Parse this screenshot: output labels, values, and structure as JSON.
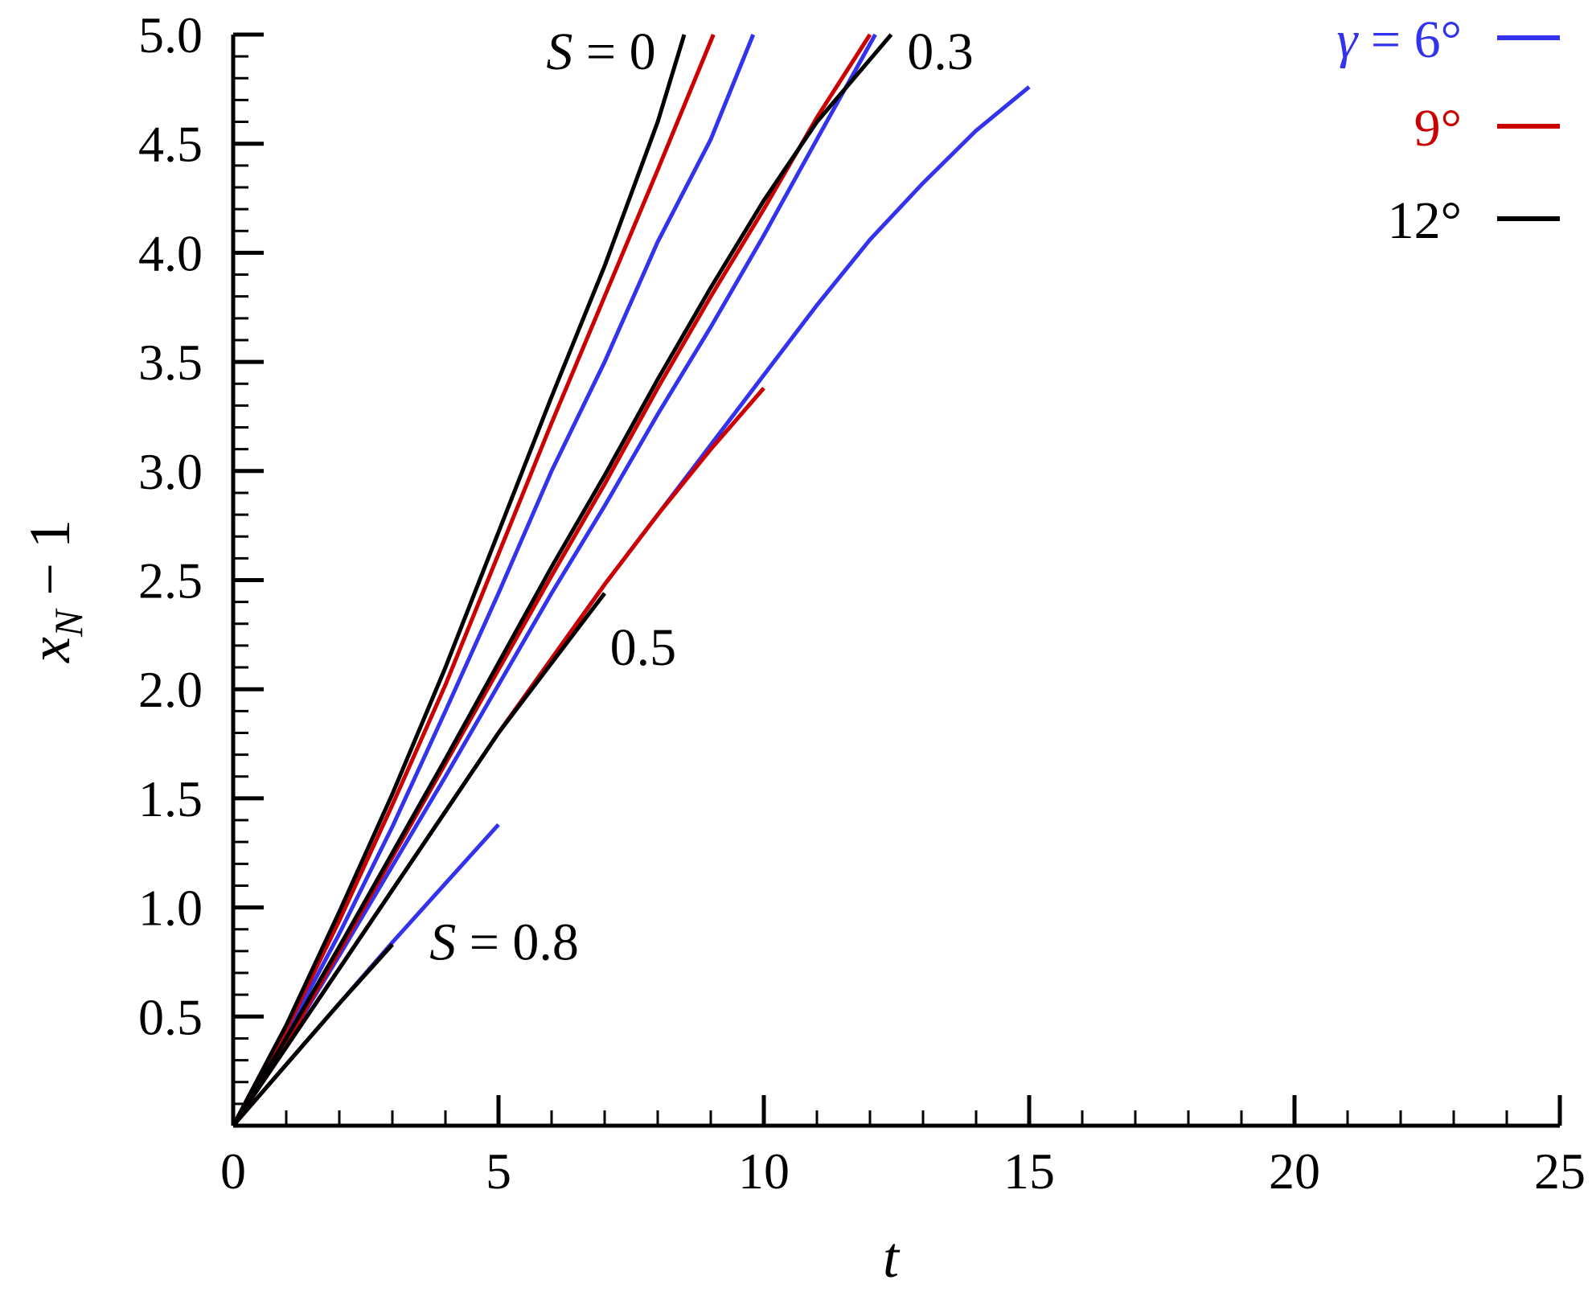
{
  "chart_data": {
    "type": "line",
    "xlabel": "t",
    "ylabel": {
      "base": "x",
      "sub": "N",
      "suffix": " − 1"
    },
    "xlim": [
      0,
      25
    ],
    "ylim": [
      0,
      5
    ],
    "x_ticks": [
      {
        "value": 0,
        "label": "0"
      },
      {
        "value": 5,
        "label": "5"
      },
      {
        "value": 10,
        "label": "10"
      },
      {
        "value": 15,
        "label": "15"
      },
      {
        "value": 20,
        "label": "20"
      },
      {
        "value": 25,
        "label": "25"
      }
    ],
    "y_ticks": [
      {
        "value": 0.5,
        "label": "0.5"
      },
      {
        "value": 1.0,
        "label": "1.0"
      },
      {
        "value": 1.5,
        "label": "1.5"
      },
      {
        "value": 2.0,
        "label": "2.0"
      },
      {
        "value": 2.5,
        "label": "2.5"
      },
      {
        "value": 3.0,
        "label": "3.0"
      },
      {
        "value": 3.5,
        "label": "3.5"
      },
      {
        "value": 4.0,
        "label": "4.0"
      },
      {
        "value": 4.5,
        "label": "4.5"
      },
      {
        "value": 5.0,
        "label": "5.0"
      }
    ],
    "grid": false,
    "legend_position": "top-right",
    "legend": [
      {
        "name": "γ = 6°",
        "color": "#3333ee"
      },
      {
        "name": "9°",
        "color": "#cc0000"
      },
      {
        "name": "12°",
        "color": "#000000"
      }
    ],
    "annotations": [
      {
        "text": "S = 0",
        "x": 5.9,
        "y": 4.93
      },
      {
        "text": "0.3",
        "x": 12.7,
        "y": 4.93
      },
      {
        "text": "0.5",
        "x": 7.1,
        "y": 2.2
      },
      {
        "text": "S = 0.8",
        "x": 3.7,
        "y": 0.85
      }
    ],
    "series": [
      {
        "name": "γ = 6°",
        "group": "S = 0",
        "color": "#3333ee",
        "x": [
          0,
          1,
          2,
          3,
          4,
          5,
          6,
          7,
          8,
          9,
          9.8
        ],
        "y": [
          0,
          0.42,
          0.88,
          1.37,
          1.9,
          2.44,
          3.0,
          3.5,
          4.05,
          4.52,
          5.0
        ]
      },
      {
        "name": "9°",
        "group": "S = 0",
        "color": "#cc0000",
        "x": [
          0,
          1,
          2,
          3,
          4,
          5,
          6,
          7,
          8,
          9.05
        ],
        "y": [
          0,
          0.44,
          0.94,
          1.47,
          2.02,
          2.62,
          3.22,
          3.8,
          4.38,
          5.0
        ]
      },
      {
        "name": "12°",
        "group": "S = 0",
        "color": "#000000",
        "x": [
          0,
          1,
          2,
          3,
          4,
          5,
          6,
          7,
          8,
          8.5
        ],
        "y": [
          0,
          0.46,
          0.98,
          1.52,
          2.1,
          2.72,
          3.34,
          3.94,
          4.6,
          5.0
        ]
      },
      {
        "name": "γ = 6°",
        "group": "S = 0.3",
        "color": "#3333ee",
        "x": [
          0,
          1,
          2,
          3,
          4,
          5,
          6,
          7,
          8,
          9,
          10,
          11,
          12.1
        ],
        "y": [
          0,
          0.38,
          0.78,
          1.19,
          1.6,
          2.02,
          2.44,
          2.84,
          3.26,
          3.66,
          4.08,
          4.52,
          5.0
        ]
      },
      {
        "name": "9°",
        "group": "S = 0.3",
        "color": "#cc0000",
        "x": [
          0,
          1,
          2,
          3,
          4,
          5,
          6,
          7,
          8,
          9,
          10,
          11,
          12.0
        ],
        "y": [
          0,
          0.38,
          0.8,
          1.23,
          1.66,
          2.09,
          2.52,
          2.94,
          3.38,
          3.8,
          4.2,
          4.62,
          5.0
        ]
      },
      {
        "name": "12°",
        "group": "S = 0.3",
        "color": "#000000",
        "x": [
          0,
          1,
          2,
          3,
          4,
          5,
          6,
          7,
          8,
          9,
          10,
          11,
          12.4
        ],
        "y": [
          0,
          0.4,
          0.82,
          1.25,
          1.68,
          2.12,
          2.56,
          2.98,
          3.42,
          3.84,
          4.24,
          4.6,
          5.0
        ]
      },
      {
        "name": "γ = 6°",
        "group": "S = 0.5",
        "color": "#3333ee",
        "x": [
          0,
          1,
          2,
          3,
          4,
          5,
          6,
          7,
          8,
          9,
          10,
          11,
          12,
          13,
          14,
          15
        ],
        "y": [
          0,
          0.36,
          0.72,
          1.08,
          1.44,
          1.8,
          2.14,
          2.48,
          2.8,
          3.12,
          3.44,
          3.76,
          4.06,
          4.32,
          4.56,
          4.76
        ]
      },
      {
        "name": "9°",
        "group": "S = 0.5",
        "color": "#cc0000",
        "x": [
          0,
          1,
          2,
          3,
          4,
          5,
          6,
          7,
          8,
          9,
          10
        ],
        "y": [
          0,
          0.36,
          0.72,
          1.08,
          1.44,
          1.8,
          2.14,
          2.48,
          2.8,
          3.1,
          3.38
        ]
      },
      {
        "name": "12°",
        "group": "S = 0.5",
        "color": "#000000",
        "x": [
          0,
          1,
          2,
          3,
          4,
          5,
          6,
          7
        ],
        "y": [
          0,
          0.36,
          0.72,
          1.08,
          1.44,
          1.8,
          2.12,
          2.44
        ]
      },
      {
        "name": "γ = 6°",
        "group": "S = 0.8",
        "color": "#3333ee",
        "x": [
          0,
          1,
          2,
          3,
          4,
          5
        ],
        "y": [
          0,
          0.28,
          0.56,
          0.84,
          1.11,
          1.38
        ]
      },
      {
        "name": "9°",
        "group": "S = 0.8",
        "color": "#cc0000",
        "x": [
          0,
          1,
          2,
          3
        ],
        "y": [
          0,
          0.28,
          0.56,
          0.83
        ]
      },
      {
        "name": "12°",
        "group": "S = 0.8",
        "color": "#000000",
        "x": [
          0,
          1,
          2,
          3
        ],
        "y": [
          0,
          0.28,
          0.56,
          0.83
        ]
      }
    ]
  }
}
